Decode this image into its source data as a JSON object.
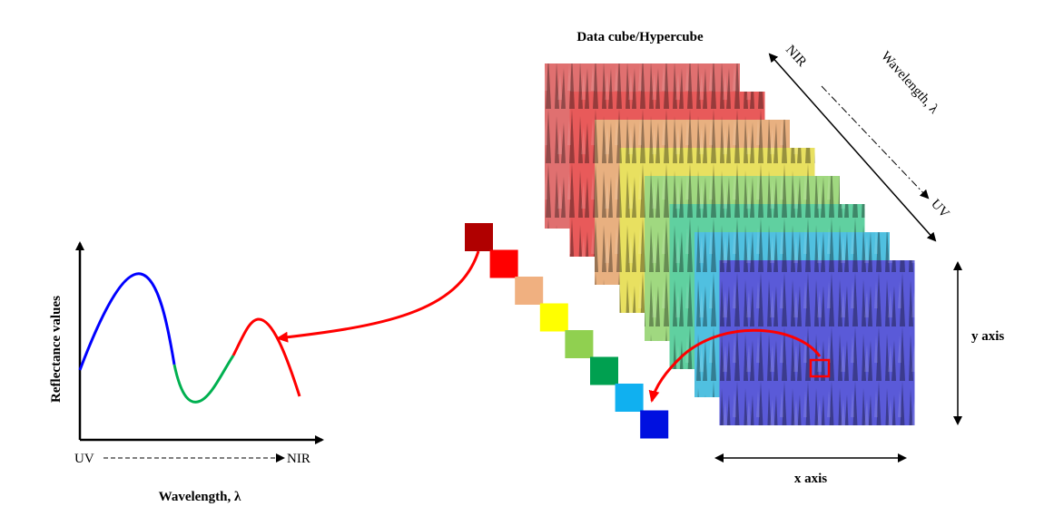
{
  "title": "Data cube/Hypercube",
  "labels": {
    "y_axis_left": "Reflectance values",
    "x_axis_left": "Wavelength, λ",
    "x_start": "UV",
    "x_end": "NIR",
    "cube_nir": "NIR",
    "cube_uv": "UV",
    "cube_wavelength": "Wavelength, λ",
    "y_axis_right": "y axis",
    "x_axis_right": "x axis"
  },
  "bands": [
    {
      "name": "dark-red",
      "color": "#c0392b",
      "tint": "#e07070"
    },
    {
      "name": "red",
      "color": "#d04040",
      "tint": "#e85a5a"
    },
    {
      "name": "peach",
      "color": "#d8a070",
      "tint": "#e8b080"
    },
    {
      "name": "yellow",
      "color": "#d8d040",
      "tint": "#e8e060"
    },
    {
      "name": "light-green",
      "color": "#a8d060",
      "tint": "#a0d880"
    },
    {
      "name": "green",
      "color": "#50c080",
      "tint": "#60d0a0"
    },
    {
      "name": "cyan",
      "color": "#40b8d0",
      "tint": "#50c0e0"
    },
    {
      "name": "blue",
      "color": "#5858d0",
      "tint": "#5a5ad8"
    }
  ],
  "pixel_squares": [
    {
      "color": "#b00000"
    },
    {
      "color": "#ff0000"
    },
    {
      "color": "#f0b080"
    },
    {
      "color": "#ffff00"
    },
    {
      "color": "#90d050"
    },
    {
      "color": "#00a050"
    },
    {
      "color": "#10b0f0"
    },
    {
      "color": "#0010e0"
    }
  ],
  "curve_colors": {
    "uv": "#0000ff",
    "mid": "#00b050",
    "nir": "#ff0000"
  },
  "arrow_color": "#ff0000"
}
